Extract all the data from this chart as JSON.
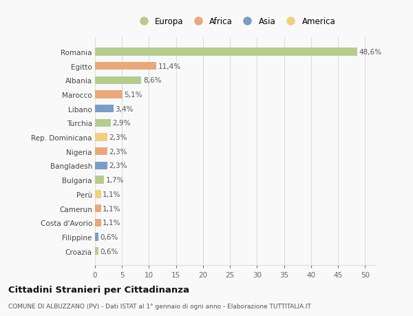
{
  "categories": [
    "Romania",
    "Egitto",
    "Albania",
    "Marocco",
    "Libano",
    "Turchia",
    "Rep. Dominicana",
    "Nigeria",
    "Bangladesh",
    "Bulgaria",
    "Perù",
    "Camerun",
    "Costa d'Avorio",
    "Filippine",
    "Croazia"
  ],
  "values": [
    48.6,
    11.4,
    8.6,
    5.1,
    3.4,
    2.9,
    2.3,
    2.3,
    2.3,
    1.7,
    1.1,
    1.1,
    1.1,
    0.6,
    0.6
  ],
  "labels": [
    "48,6%",
    "11,4%",
    "8,6%",
    "5,1%",
    "3,4%",
    "2,9%",
    "2,3%",
    "2,3%",
    "2,3%",
    "1,7%",
    "1,1%",
    "1,1%",
    "1,1%",
    "0,6%",
    "0,6%"
  ],
  "colors": [
    "#b5cc8e",
    "#e8a87c",
    "#b5cc8e",
    "#e8a87c",
    "#7b9dc4",
    "#b5cc8e",
    "#f0d080",
    "#e8a87c",
    "#7b9dc4",
    "#b5cc8e",
    "#f0d080",
    "#e8a87c",
    "#e8a87c",
    "#7b9dc4",
    "#b5cc8e"
  ],
  "legend_labels": [
    "Europa",
    "Africa",
    "Asia",
    "America"
  ],
  "legend_colors": [
    "#b5cc8e",
    "#e8a87c",
    "#7b9dc4",
    "#f0d080"
  ],
  "title": "Cittadini Stranieri per Cittadinanza",
  "subtitle": "COMUNE DI ALBUZZANO (PV) - Dati ISTAT al 1° gennaio di ogni anno - Elaborazione TUTTITALIA.IT",
  "xlim": [
    0,
    52
  ],
  "xticks": [
    0,
    5,
    10,
    15,
    20,
    25,
    30,
    35,
    40,
    45,
    50
  ],
  "bg_color": "#f9f9f9",
  "grid_color": "#dddddd",
  "bar_height": 0.55,
  "label_fontsize": 7.5,
  "ytick_fontsize": 7.5,
  "xtick_fontsize": 7.5
}
